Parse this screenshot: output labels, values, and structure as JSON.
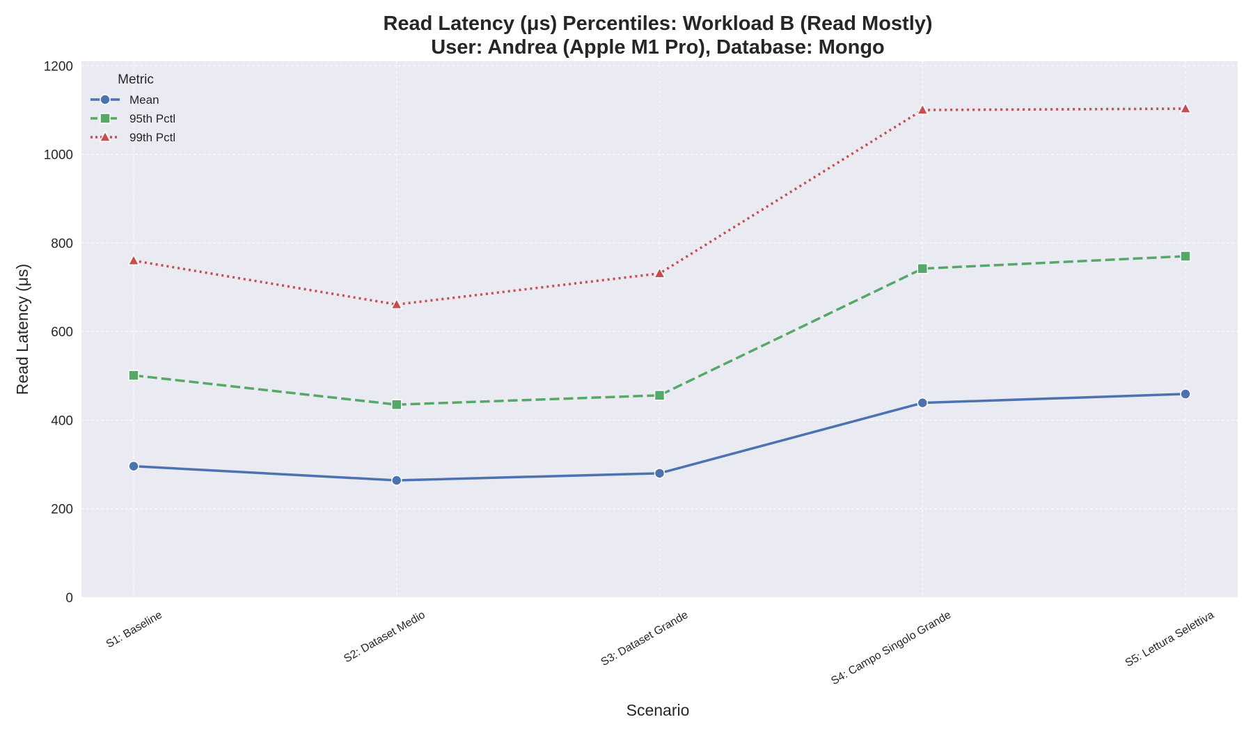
{
  "chart_data": {
    "type": "line",
    "title_line1": "Read Latency (μs) Percentiles: Workload B (Read Mostly)",
    "title_line2": "User: Andrea (Apple M1 Pro), Database: Mongo",
    "xlabel": "Scenario",
    "ylabel": "Read Latency (μs)",
    "categories": [
      "S1: Baseline",
      "S2: Dataset Medio",
      "S3: Dataset Grande",
      "S4: Campo Singolo Grande",
      "S5: Lettura Selettiva"
    ],
    "ylim": [
      0,
      1210
    ],
    "yticks": [
      0,
      200,
      400,
      600,
      800,
      1000,
      1200
    ],
    "grid": true,
    "legend": {
      "title": "Metric",
      "placement": "top-left"
    },
    "background_color": "#eaeaf2",
    "series": [
      {
        "name": "Mean",
        "values": [
          296,
          264,
          280,
          439,
          459
        ],
        "color": "#4c72b0",
        "marker": "circle",
        "dash": "solid"
      },
      {
        "name": "95th Pctl",
        "values": [
          501,
          435,
          456,
          742,
          770
        ],
        "color": "#55a868",
        "marker": "square",
        "dash": "dashed"
      },
      {
        "name": "99th Pctl",
        "values": [
          760,
          661,
          731,
          1100,
          1103
        ],
        "color": "#c44e52",
        "marker": "triangle",
        "dash": "dotted"
      }
    ]
  }
}
